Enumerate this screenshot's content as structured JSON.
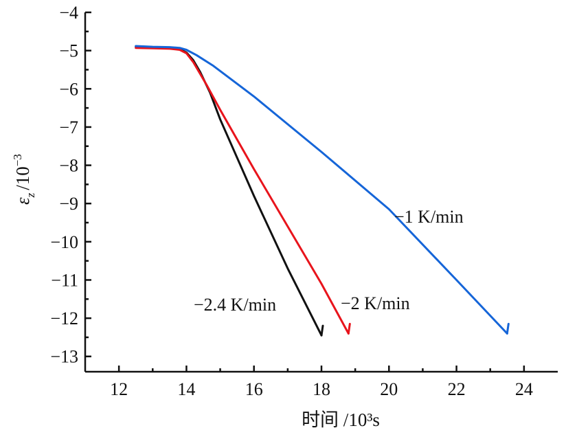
{
  "chart_data": {
    "type": "line",
    "xlabel": "时间 /10³s",
    "ylabel_main": "ε",
    "ylabel_sub": "z",
    "ylabel_unit": "/10",
    "ylabel_exp": "−3",
    "xlim": [
      11,
      25
    ],
    "ylim": [
      -13.4,
      -4
    ],
    "x_ticks": [
      12,
      14,
      16,
      18,
      20,
      22,
      24
    ],
    "x_tick_labels": [
      "12",
      "14",
      "16",
      "18",
      "20",
      "22",
      "24"
    ],
    "y_ticks": [
      -4,
      -5,
      -6,
      -7,
      -8,
      -9,
      -10,
      -11,
      -12,
      -13
    ],
    "y_tick_labels": [
      "−4",
      "−5",
      "−6",
      "−7",
      "−8",
      "−9",
      "−10",
      "−11",
      "−12",
      "−13"
    ],
    "series": [
      {
        "name": "−2.4 K/min",
        "color": "#111111",
        "x": [
          12.5,
          13.0,
          13.5,
          13.8,
          14.0,
          14.2,
          14.4,
          14.7,
          15.0,
          16.0,
          17.0,
          18.0
        ],
        "y": [
          -4.9,
          -4.92,
          -4.93,
          -4.96,
          -5.05,
          -5.25,
          -5.55,
          -6.1,
          -6.8,
          -8.8,
          -10.7,
          -12.45
        ]
      },
      {
        "name": "−2 K/min",
        "color": "#e8141c",
        "x": [
          12.5,
          13.0,
          13.5,
          13.8,
          14.0,
          14.2,
          14.4,
          14.6,
          15.0,
          16.0,
          17.0,
          18.0,
          18.8
        ],
        "y": [
          -4.93,
          -4.94,
          -4.95,
          -4.98,
          -5.07,
          -5.3,
          -5.6,
          -5.9,
          -6.55,
          -8.1,
          -9.6,
          -11.1,
          -12.4
        ]
      },
      {
        "name": "−1 K/min",
        "color": "#1565d8",
        "x": [
          12.5,
          13.0,
          13.5,
          13.8,
          14.0,
          14.3,
          14.8,
          16.0,
          18.0,
          20.0,
          22.0,
          23.5
        ],
        "y": [
          -4.88,
          -4.9,
          -4.91,
          -4.93,
          -4.98,
          -5.12,
          -5.4,
          -6.2,
          -7.65,
          -9.15,
          -11.0,
          -12.4
        ]
      }
    ],
    "annotations": [
      {
        "text": "−2.4 K/min",
        "series": 0
      },
      {
        "text": "−2 K/min",
        "series": 1
      },
      {
        "text": "−1 K/min",
        "series": 2
      }
    ],
    "grid": false
  }
}
